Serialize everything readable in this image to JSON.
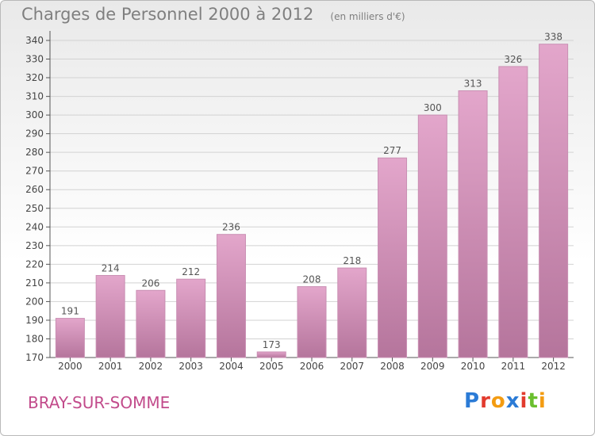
{
  "header": {
    "title": "Charges de Personnel 2000 à 2012",
    "subtitle": "(en milliers d'€)"
  },
  "footer": {
    "commune": "BRAY-SUR-SOMME",
    "brand": "Proxiti",
    "brand_letters": [
      {
        "char": "P",
        "color": "#2b7bd6"
      },
      {
        "char": "r",
        "color": "#e23b2e"
      },
      {
        "char": "o",
        "color": "#f39c12"
      },
      {
        "char": "x",
        "color": "#2b7bd6"
      },
      {
        "char": "i",
        "color": "#e23b2e"
      },
      {
        "char": "t",
        "color": "#6abf2e"
      },
      {
        "char": "i",
        "color": "#f39c12"
      }
    ]
  },
  "chart_data": {
    "type": "bar",
    "title": "Charges de Personnel 2000 à 2012",
    "subtitle": "(en milliers d'€)",
    "categories": [
      "2000",
      "2001",
      "2002",
      "2003",
      "2004",
      "2005",
      "2006",
      "2007",
      "2008",
      "2009",
      "2010",
      "2011",
      "2012"
    ],
    "values": [
      191,
      214,
      206,
      212,
      236,
      173,
      208,
      218,
      277,
      300,
      313,
      326,
      338
    ],
    "ylim": [
      170,
      340
    ],
    "ytick_step": 10,
    "grid": true,
    "bar_color_top": "#e3a6cb",
    "bar_color_bottom": "#b5759c",
    "xlabel": "",
    "ylabel": ""
  }
}
